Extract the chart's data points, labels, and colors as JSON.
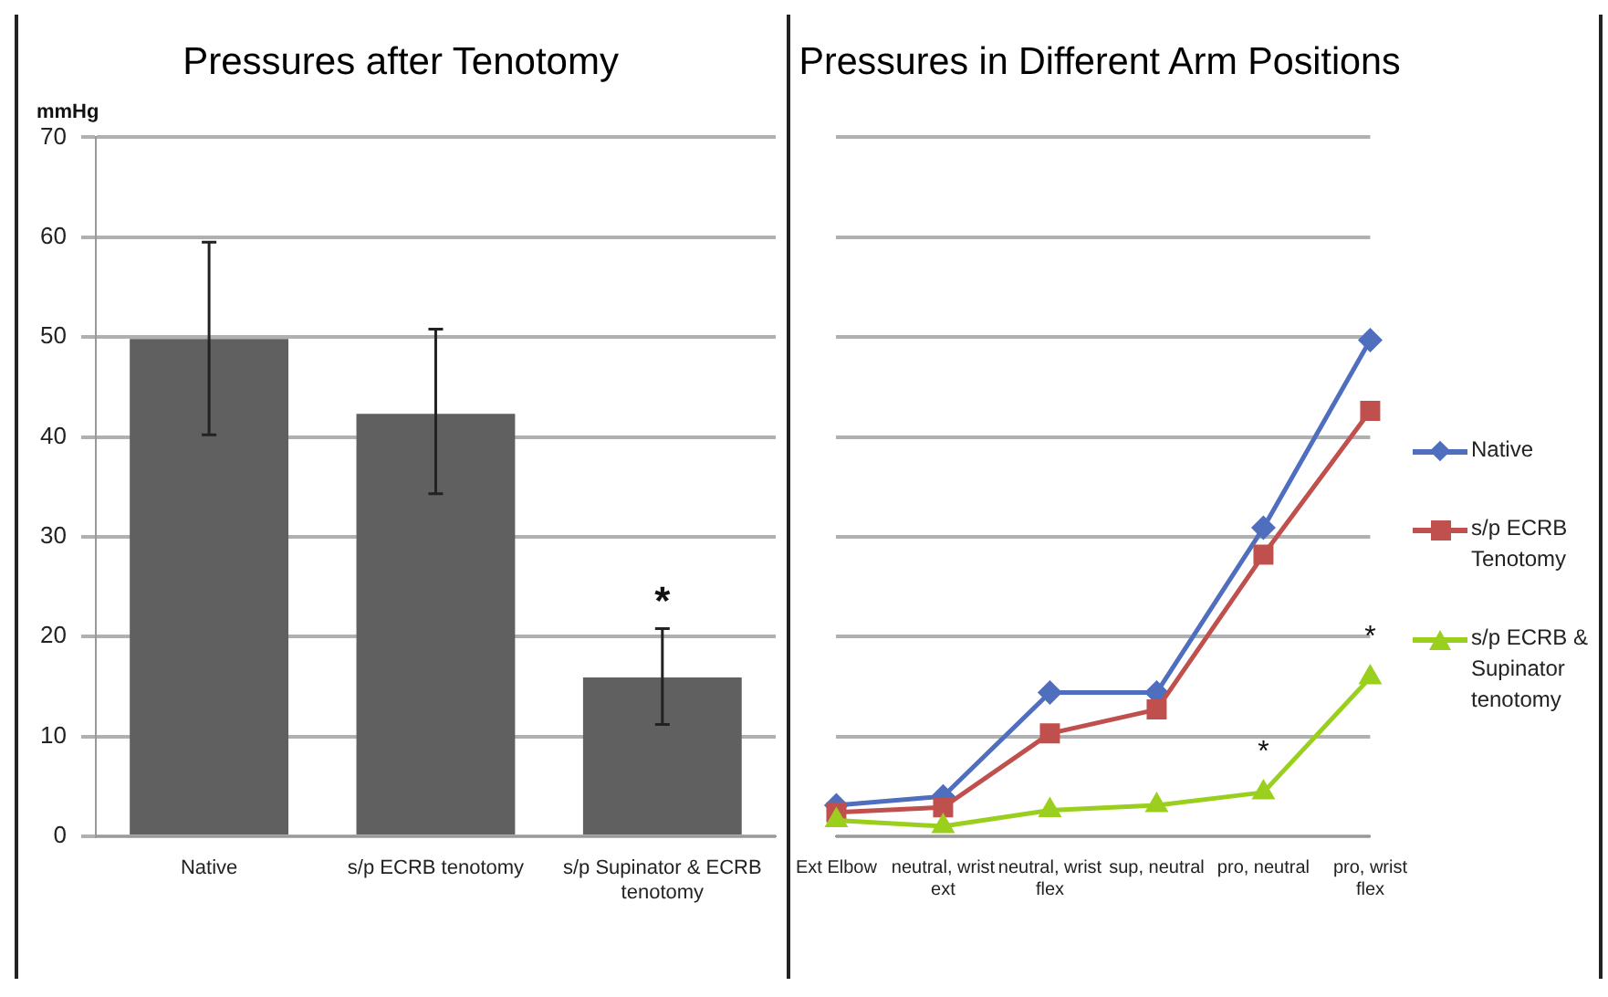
{
  "chart_data": [
    {
      "type": "bar",
      "title": "Pressures after Tenotomy",
      "ylabel": "mmHg",
      "categories": [
        "Native",
        "s/p ECRB tenotomy",
        "s/p Supinator & ECRB tenotomy"
      ],
      "values": [
        49.8,
        42.3,
        15.9
      ],
      "color": "#606060",
      "errors": [
        [
          40.2,
          59.5
        ],
        [
          34.3,
          50.8
        ],
        [
          11.2,
          20.8
        ]
      ],
      "ylim": [
        0,
        70
      ],
      "yticks": [
        0,
        10,
        20,
        30,
        40,
        50,
        60,
        70
      ],
      "grid": "y",
      "legend": false,
      "annotations": [
        {
          "text": "*",
          "x": "s/p Supinator & ECRB tenotomy",
          "y": 15.9
        }
      ]
    },
    {
      "type": "line",
      "title": "Pressures in Different Arm Positions",
      "categories": [
        "Ext Elbow",
        "neutral, wrist ext",
        "neutral, wrist flex",
        "sup, neutral",
        "pro, neutral",
        "pro, wrist flex"
      ],
      "series": [
        {
          "name": "Native",
          "color": "#4f6fbe",
          "marker": "diamond",
          "values": [
            3.1,
            4.0,
            14.4,
            14.4,
            30.9,
            49.7
          ]
        },
        {
          "name": "s/p ECRB Tenotomy",
          "color": "#c0504d",
          "marker": "square",
          "values": [
            2.4,
            2.9,
            10.3,
            12.7,
            28.2,
            42.6
          ]
        },
        {
          "name": "s/p ECRB & Supinator tenotomy",
          "color": "#9bcf1e",
          "marker": "triangle",
          "values": [
            1.6,
            1.0,
            2.6,
            3.1,
            4.4,
            15.9
          ]
        }
      ],
      "ylim": [
        0,
        70
      ],
      "yticks": [
        0,
        10,
        20,
        30,
        40,
        50,
        60,
        70
      ],
      "tick_labels": "x",
      "grid": "y",
      "legend": "right",
      "annotations": [
        {
          "text": "*",
          "x": "pro, neutral",
          "y": 4.4
        },
        {
          "text": "*",
          "x": "pro, wrist flex",
          "y": 15.9
        }
      ]
    }
  ]
}
